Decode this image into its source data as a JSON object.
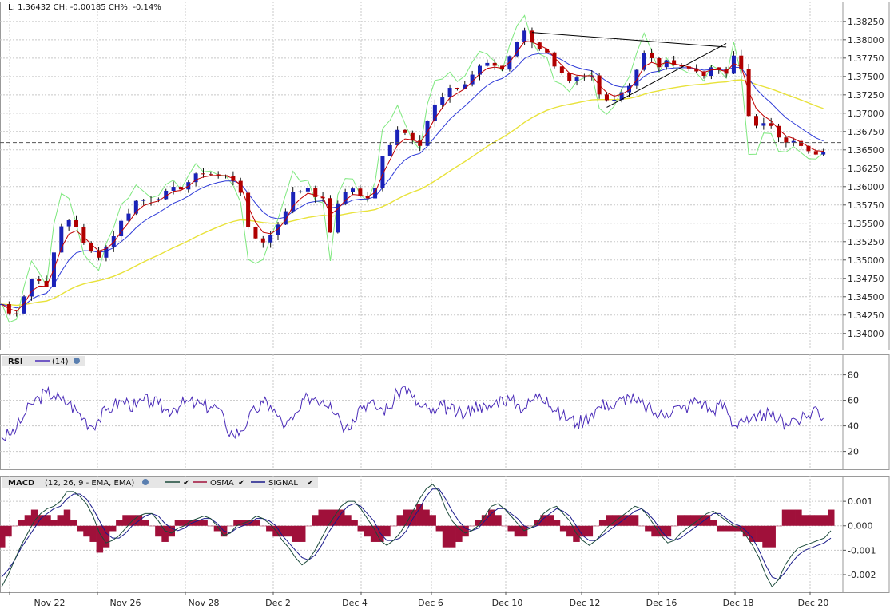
{
  "header": {
    "readout": "L: 1.36432 CH: -0.00185 CH%: -0.14%"
  },
  "colors": {
    "grid": "#c8c8c8",
    "frame": "#9a9a9a",
    "candle_up": "#1a22b8",
    "candle_down": "#b00000",
    "ema_fast": "#c00000",
    "ema_mid": "#2f3bd8",
    "sma_slow": "#e8e23a",
    "envelope": "#7ee87e",
    "rsi_line": "#4a2bb8",
    "macd_line": "#1b4a3a",
    "osma_bar": "#a0103a",
    "signal_line": "#1a1a8a",
    "panel_header_bg": "#e6e6e6"
  },
  "chart_data": [
    {
      "type": "candlestick",
      "title": "",
      "x_labels": [
        "Nov 22",
        "Nov 26",
        "Nov 28",
        "Dec 2",
        "Dec 4",
        "Dec 6",
        "Dec 10",
        "Dec 12",
        "Dec 16",
        "Dec 18",
        "Dec 20"
      ],
      "y_ticks": [
        "1.38250",
        "1.38000",
        "1.37750",
        "1.37500",
        "1.37250",
        "1.37000",
        "1.36750",
        "1.36500",
        "1.36250",
        "1.36000",
        "1.35750",
        "1.35500",
        "1.35250",
        "1.35000",
        "1.34750",
        "1.34500",
        "1.34250",
        "1.34000"
      ],
      "ylim": [
        1.3378,
        1.3852
      ],
      "last_price": 1.366,
      "close_path": [
        [
          0,
          1.344
        ],
        [
          1.5,
          1.342
        ],
        [
          4,
          1.3475
        ],
        [
          6,
          1.3468
        ],
        [
          8,
          1.3545
        ],
        [
          9.5,
          1.356
        ],
        [
          11,
          1.352
        ],
        [
          12.5,
          1.3505
        ],
        [
          13.5,
          1.351
        ],
        [
          15,
          1.3535
        ],
        [
          16.5,
          1.356
        ],
        [
          18,
          1.358
        ],
        [
          20,
          1.3585
        ],
        [
          22,
          1.359
        ],
        [
          24,
          1.36
        ],
        [
          27,
          1.362
        ],
        [
          29,
          1.3615
        ],
        [
          31,
          1.361
        ],
        [
          32,
          1.3595
        ],
        [
          33,
          1.354
        ],
        [
          34,
          1.353
        ],
        [
          35.5,
          1.3525
        ],
        [
          37,
          1.355
        ],
        [
          39,
          1.359
        ],
        [
          41,
          1.36
        ],
        [
          43,
          1.358
        ],
        [
          44,
          1.354
        ],
        [
          45.5,
          1.359
        ],
        [
          47,
          1.36
        ],
        [
          48.5,
          1.358
        ],
        [
          50,
          1.3595
        ],
        [
          51,
          1.364
        ],
        [
          53,
          1.368
        ],
        [
          54.5,
          1.367
        ],
        [
          56,
          1.366
        ],
        [
          57,
          1.369
        ],
        [
          58,
          1.371
        ],
        [
          60,
          1.373
        ],
        [
          62,
          1.374
        ],
        [
          64,
          1.3765
        ],
        [
          66,
          1.3765
        ],
        [
          67,
          1.376
        ],
        [
          68,
          1.378
        ],
        [
          69,
          1.38
        ],
        [
          70,
          1.381
        ],
        [
          72,
          1.379
        ],
        [
          73,
          1.378
        ],
        [
          74,
          1.376
        ],
        [
          76,
          1.374
        ],
        [
          77,
          1.3745
        ],
        [
          79,
          1.375
        ],
        [
          80,
          1.3725
        ],
        [
          82,
          1.372
        ],
        [
          84,
          1.374
        ],
        [
          86,
          1.378
        ],
        [
          88,
          1.3765
        ],
        [
          90,
          1.377
        ],
        [
          92,
          1.376
        ],
        [
          94,
          1.3755
        ],
        [
          96,
          1.376
        ],
        [
          97.5,
          1.3745
        ],
        [
          98.5,
          1.381
        ],
        [
          99.5,
          1.371
        ],
        [
          101,
          1.368
        ],
        [
          103,
          1.3685
        ],
        [
          104.5,
          1.3665
        ],
        [
          106,
          1.366
        ],
        [
          107.5,
          1.365
        ],
        [
          109,
          1.364
        ],
        [
          110,
          1.365
        ],
        [
          111,
          1.3645
        ]
      ],
      "series": [
        {
          "name": "",
          "kind": "ema_fast"
        },
        {
          "name": "",
          "kind": "ema_mid"
        },
        {
          "name": "",
          "kind": "sma_slow"
        },
        {
          "name": "",
          "kind": "envelope"
        }
      ],
      "trendlines": [
        {
          "from": [
            71,
            1.381
          ],
          "to": [
            97,
            1.379
          ]
        },
        {
          "from": [
            81,
            1.3708
          ],
          "to": [
            97,
            1.3795
          ]
        }
      ]
    },
    {
      "type": "line",
      "title": "RSI",
      "legend": [
        {
          "label": "(14)"
        }
      ],
      "y_ticks": [
        "80",
        "60",
        "40",
        "20"
      ],
      "ylim": [
        6,
        96
      ],
      "values": [
        31,
        33,
        38,
        48,
        57,
        62,
        66,
        64,
        60,
        58,
        52,
        46,
        40,
        45,
        52,
        56,
        59,
        58,
        55,
        60,
        58,
        57,
        52,
        54,
        56,
        59,
        57,
        56,
        55,
        54,
        40,
        33,
        36,
        45,
        52,
        58,
        56,
        47,
        40,
        45,
        53,
        63,
        62,
        60,
        58,
        50,
        38,
        45,
        56,
        58,
        55,
        53,
        54,
        66,
        71,
        62,
        55,
        53,
        49,
        56,
        53,
        50,
        48,
        55,
        57,
        52,
        58,
        62,
        60,
        57,
        54,
        60,
        65,
        62,
        52,
        48,
        46,
        42,
        45,
        50,
        55,
        58,
        54,
        61,
        63,
        58,
        56,
        52,
        48,
        50,
        55,
        53,
        56,
        60,
        58,
        51,
        57,
        54,
        40,
        46,
        42,
        44,
        50,
        47,
        45,
        42,
        46,
        44,
        48,
        55,
        46
      ]
    },
    {
      "type": "line",
      "title": "MACD",
      "params": "(12, 26, 9 - EMA, EMA)",
      "legend": [
        {
          "label": ""
        },
        {
          "label": "OSMA"
        },
        {
          "label": "SIGNAL"
        }
      ],
      "y_ticks": [
        "0.001",
        "0.000",
        "-0.001",
        "-0.002"
      ],
      "ylim": [
        -0.00272,
        0.00205
      ],
      "macd": [
        -0.0025,
        -0.002,
        -0.0014,
        -0.0008,
        -0.0003,
        0.0002,
        0.0005,
        0.0007,
        0.0008,
        0.001,
        0.0014,
        0.0014,
        0.0012,
        0.0009,
        0.0004,
        -0.0003,
        -0.0007,
        -0.0006,
        -0.0004,
        -0.0001,
        0.0002,
        0.0004,
        0.0005,
        0.0005,
        0.0002,
        -0.0002,
        -0.0003,
        -0.0001,
        0.0,
        0.0002,
        0.0003,
        0.0004,
        0.0003,
        0.0,
        -0.0004,
        -0.0003,
        0.0,
        0.0001,
        0.0002,
        0.0004,
        0.0003,
        0.0001,
        -0.0002,
        -0.0006,
        -0.0009,
        -0.0013,
        -0.0016,
        -0.0014,
        -0.001,
        -0.0005,
        0.0,
        0.0004,
        0.0008,
        0.001,
        0.001,
        0.0007,
        0.0003,
        -0.0001,
        -0.0006,
        -0.0008,
        -0.0006,
        -0.0003,
        0.0001,
        0.0006,
        0.0011,
        0.0015,
        0.0017,
        0.0014,
        0.0007,
        0.0002,
        -0.0001,
        -0.0003,
        -0.0002,
        0.0,
        0.0004,
        0.0008,
        0.0009,
        0.0007,
        0.0004,
        0.0001,
        -0.0002,
        -0.0001,
        0.0001,
        0.0005,
        0.0007,
        0.0008,
        0.0005,
        0.0002,
        -0.0003,
        -0.0006,
        -0.0008,
        -0.0006,
        -0.0003,
        0.0,
        0.0002,
        0.0004,
        0.0006,
        0.0008,
        0.0007,
        0.0004,
        0.0,
        -0.0004,
        -0.0007,
        -0.0006,
        -0.0003,
        -0.0001,
        0.0001,
        0.0003,
        0.0005,
        0.0006,
        0.0004,
        0.0002,
        0.0,
        -0.0001,
        -0.0004,
        -0.0008,
        -0.0013,
        -0.002,
        -0.0025,
        -0.0022,
        -0.0016,
        -0.0012,
        -0.0009,
        -0.0008,
        -0.0007,
        -0.0006,
        -0.0005,
        -0.0002
      ],
      "signal": [
        -0.0021,
        -0.0018,
        -0.0014,
        -0.0009,
        -0.0005,
        -0.0001,
        0.0003,
        0.0005,
        0.0007,
        0.0008,
        0.0011,
        0.0013,
        0.0013,
        0.0011,
        0.0007,
        0.0002,
        -0.0003,
        -0.0005,
        -0.0005,
        -0.0003,
        0.0,
        0.0002,
        0.0004,
        0.0005,
        0.0004,
        0.0001,
        -0.0001,
        -0.0002,
        -0.0001,
        0.0001,
        0.0002,
        0.0003,
        0.0003,
        0.0001,
        -0.0002,
        -0.0003,
        -0.0001,
        0.0,
        0.0001,
        0.0003,
        0.0003,
        0.0002,
        0.0,
        -0.0004,
        -0.0007,
        -0.001,
        -0.0013,
        -0.0014,
        -0.0012,
        -0.0008,
        -0.0003,
        0.0001,
        0.0005,
        0.0008,
        0.0009,
        0.0008,
        0.0005,
        0.0002,
        -0.0003,
        -0.0006,
        -0.0006,
        -0.0005,
        -0.0002,
        0.0003,
        0.0007,
        0.0012,
        0.0015,
        0.0015,
        0.0011,
        0.0006,
        0.0002,
        -0.0001,
        -0.0002,
        -0.0001,
        0.0002,
        0.0005,
        0.0007,
        0.0007,
        0.0005,
        0.0003,
        0.0,
        -0.0001,
        0.0,
        0.0003,
        0.0005,
        0.0007,
        0.0006,
        0.0004,
        0.0,
        -0.0004,
        -0.0006,
        -0.0006,
        -0.0004,
        -0.0002,
        0.0,
        0.0002,
        0.0004,
        0.0006,
        0.0007,
        0.0005,
        0.0002,
        -0.0002,
        -0.0005,
        -0.0006,
        -0.0005,
        -0.0003,
        -0.0001,
        0.0001,
        0.0003,
        0.0005,
        0.0005,
        0.0003,
        0.0001,
        0.0,
        -0.0002,
        -0.0005,
        -0.001,
        -0.0016,
        -0.0021,
        -0.0022,
        -0.0019,
        -0.0015,
        -0.0012,
        -0.001,
        -0.0009,
        -0.0008,
        -0.0007,
        -0.0005
      ]
    }
  ]
}
